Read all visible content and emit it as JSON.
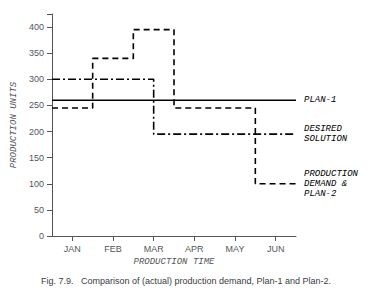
{
  "chart_data": {
    "type": "line",
    "title": "Fig. 7.9.   Comparison of (actual) production demand, Plan-1 and Plan-2.",
    "xlabel": "PRODUCTION TIME",
    "ylabel": "PRODUCTION UNITS",
    "xlim": [
      0,
      6
    ],
    "ylim": [
      0,
      425
    ],
    "yticks": [
      0,
      50,
      100,
      150,
      200,
      250,
      300,
      350,
      400
    ],
    "xticks": [
      {
        "value": 0.5,
        "label": "JAN"
      },
      {
        "value": 1.5,
        "label": "FEB"
      },
      {
        "value": 2.5,
        "label": "MAR"
      },
      {
        "value": 3.5,
        "label": "APR"
      },
      {
        "value": 4.5,
        "label": "MAY"
      },
      {
        "value": 5.5,
        "label": "JUN"
      }
    ],
    "grid": false,
    "series": [
      {
        "name": "PLAN-1",
        "color": "black",
        "line_style": "solid",
        "x": [
          0,
          6
        ],
        "values": [
          260,
          260
        ]
      },
      {
        "name": "DESIRED\nSOLUTION",
        "color": "black",
        "line_style": "dashdot",
        "x": [
          0,
          2.5,
          2.5,
          6
        ],
        "values": [
          300,
          300,
          195,
          195
        ]
      },
      {
        "name": "PRODUCTION\nDEMAND &\nPLAN-2",
        "color": "black",
        "line_style": "dashed",
        "x": [
          0,
          1,
          1,
          2,
          2,
          3,
          3,
          3.5,
          3.5,
          5,
          5,
          6
        ],
        "values": [
          245,
          245,
          340,
          340,
          395,
          395,
          245,
          245,
          245,
          245,
          100,
          100
        ]
      }
    ]
  }
}
